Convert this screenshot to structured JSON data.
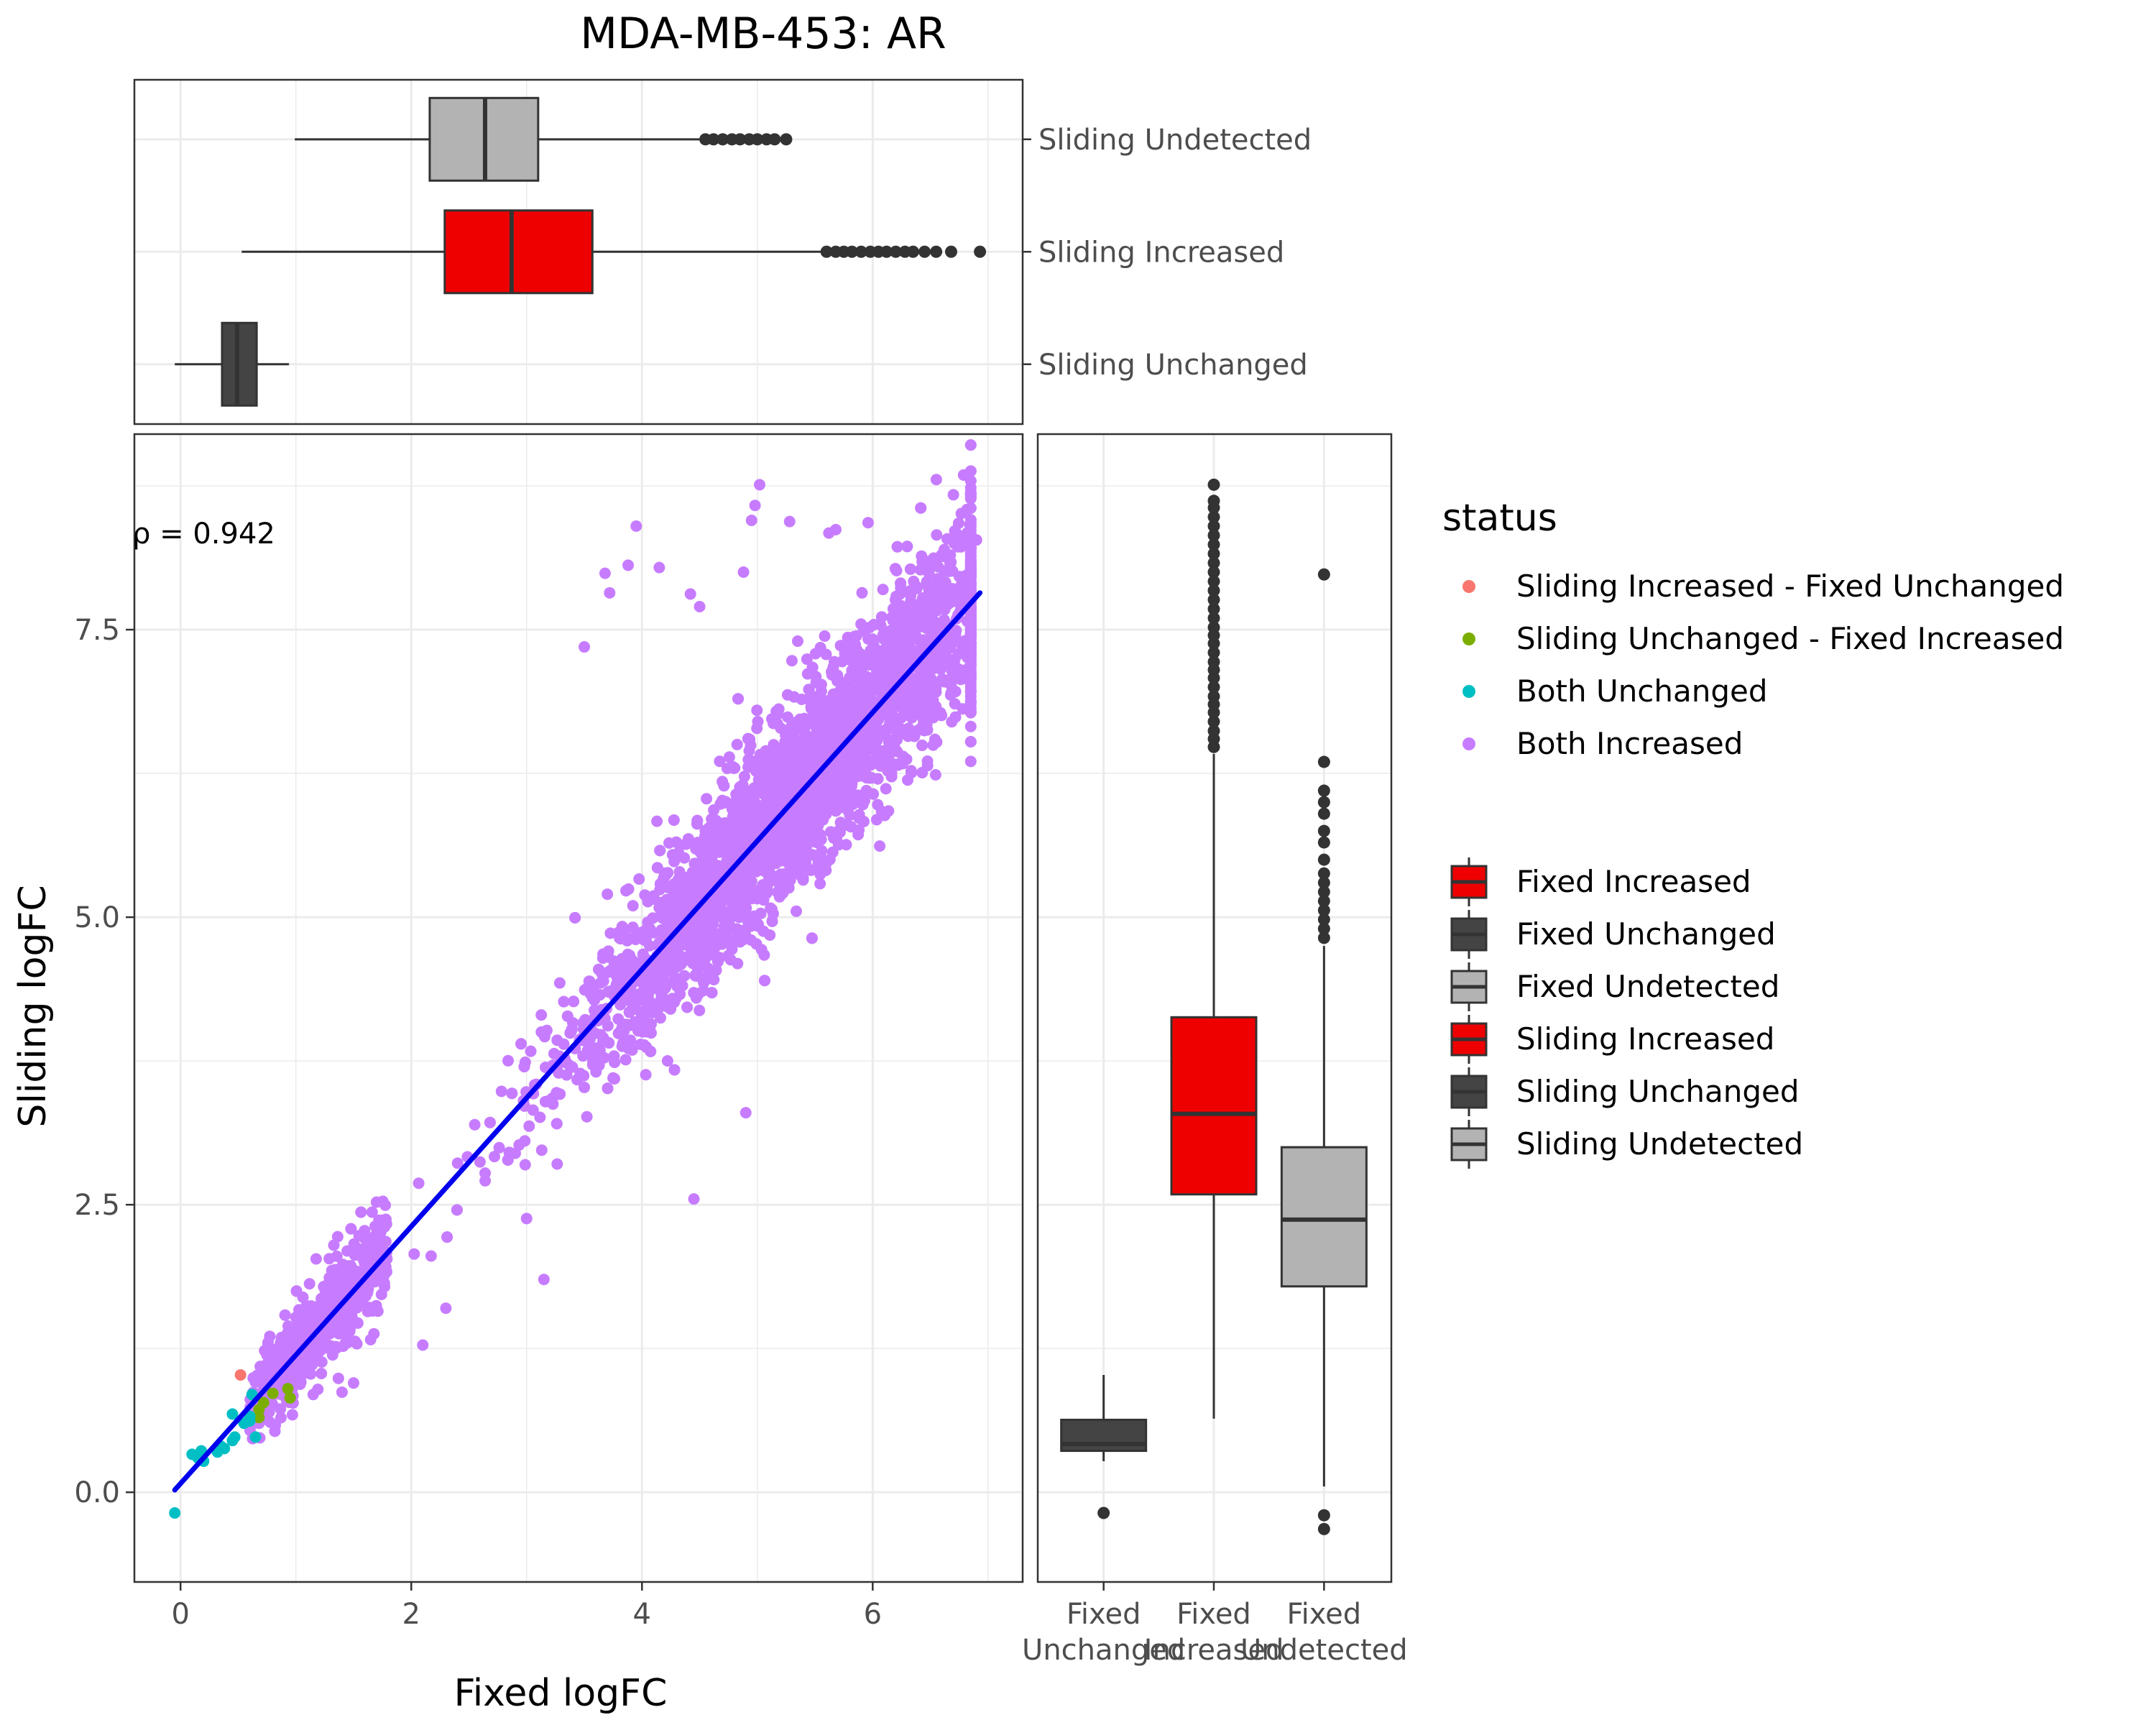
{
  "figure": {
    "title": "MDA-MB-453: AR",
    "colors": {
      "fixed_increased": "#EE0000",
      "fixed_unchanged": "#444444",
      "fixed_undetected": "#B3B3B3",
      "fit_line": "#0000EE",
      "box_line": "#333333",
      "grid": "#EBEBEB",
      "panel_border": "#333333",
      "axis_text": "#4D4D4D"
    }
  },
  "chart_data": [
    {
      "id": "top_boxplot",
      "type": "boxplot",
      "orientation": "horizontal",
      "xlim": [
        -0.4,
        7.3
      ],
      "categories": [
        "Sliding Unchanged",
        "Sliding Increased",
        "Sliding Undetected"
      ],
      "boxes": [
        {
          "name": "Sliding Unchanged",
          "whisker_low": -0.05,
          "q1": 0.36,
          "median": 0.49,
          "q3": 0.66,
          "whisker_high": 0.94,
          "outliers": [],
          "color": "#444444"
        },
        {
          "name": "Sliding Increased",
          "whisker_low": 0.53,
          "q1": 2.29,
          "median": 2.87,
          "q3": 3.57,
          "whisker_high": 5.55,
          "outliers": [
            5.6,
            5.68,
            5.75,
            5.82,
            5.9,
            5.98,
            6.05,
            6.12,
            6.2,
            6.28,
            6.35,
            6.45,
            6.55,
            6.68,
            6.93
          ],
          "color": "#EE0000"
        },
        {
          "name": "Sliding Undetected",
          "whisker_low": 0.99,
          "q1": 2.16,
          "median": 2.64,
          "q3": 3.1,
          "whisker_high": 4.5,
          "outliers": [
            4.55,
            4.62,
            4.7,
            4.78,
            4.85,
            4.93,
            5.0,
            5.08,
            5.15,
            5.25
          ],
          "color": "#B3B3B3"
        }
      ]
    },
    {
      "id": "scatter",
      "type": "scatter",
      "xlabel": "Fixed logFC",
      "ylabel": "Sliding logFC",
      "xlim": [
        -0.4,
        7.3
      ],
      "ylim": [
        -0.78,
        9.2
      ],
      "x_ticks": [
        0,
        2,
        4,
        6
      ],
      "x_tick_labels": [
        "0",
        "2",
        "4",
        "6"
      ],
      "y_ticks": [
        0,
        2.5,
        5,
        7.5
      ],
      "y_tick_labels": [
        "0.0",
        "2.5",
        "5.0",
        "7.5"
      ],
      "annotation": "ρ = 0.942",
      "fit_line": {
        "x": [
          -0.05,
          6.93
        ],
        "y": [
          0.02,
          7.82
        ]
      },
      "series": [
        {
          "name": "Sliding Increased - Fixed Unchanged",
          "color": "#F8766D",
          "points": [
            [
              0.52,
              1.02
            ]
          ]
        },
        {
          "name": "Sliding Unchanged - Fixed Increased",
          "color": "#7CAE00",
          "points": [
            [
              0.68,
              0.65
            ],
            [
              0.72,
              0.78
            ],
            [
              0.8,
              0.86
            ],
            [
              0.95,
              0.82
            ],
            [
              0.93,
              0.9
            ],
            [
              0.68,
              0.72
            ]
          ]
        },
        {
          "name": "Both Unchanged",
          "color": "#00BFC4",
          "points": [
            [
              -0.05,
              -0.18
            ],
            [
              0.1,
              0.33
            ],
            [
              0.15,
              0.3
            ],
            [
              0.18,
              0.36
            ],
            [
              0.2,
              0.27
            ],
            [
              0.32,
              0.35
            ],
            [
              0.35,
              0.4
            ],
            [
              0.45,
              0.45
            ],
            [
              0.47,
              0.48
            ],
            [
              0.45,
              0.68
            ],
            [
              0.55,
              0.6
            ],
            [
              0.6,
              0.66
            ],
            [
              0.62,
              0.85
            ],
            [
              0.65,
              0.48
            ],
            [
              0.38,
              0.38
            ],
            [
              0.6,
              0.62
            ]
          ]
        },
        {
          "name": "Both Increased",
          "color": "#C77CFF",
          "generated": true,
          "count": 4500,
          "noise_sd": 0.32,
          "x_range": [
            0.6,
            6.85
          ],
          "extreme_points": [
            [
              3.68,
              7.99
            ],
            [
              3.88,
              8.06
            ],
            [
              3.95,
              8.4
            ],
            [
              4.15,
              8.04
            ],
            [
              4.42,
              7.81
            ],
            [
              4.88,
              8.0
            ],
            [
              4.95,
              8.45
            ],
            [
              4.98,
              8.58
            ],
            [
              5.02,
              8.76
            ],
            [
              5.28,
              8.44
            ],
            [
              5.62,
              8.34
            ],
            [
              5.68,
              8.37
            ],
            [
              5.96,
              8.43
            ],
            [
              6.9,
              8.28
            ],
            [
              6.6,
              7.88
            ],
            [
              3.72,
              7.82
            ],
            [
              4.5,
              7.7
            ],
            [
              3.5,
              7.35
            ],
            [
              5.35,
              7.4
            ],
            [
              5.3,
              7.23
            ],
            [
              3.5,
              3.52
            ],
            [
              4.45,
              2.55
            ],
            [
              3.15,
              1.85
            ],
            [
              3.0,
              2.38
            ],
            [
              2.1,
              1.28
            ],
            [
              1.15,
              0.85
            ],
            [
              1.4,
              0.87
            ],
            [
              5.8,
              6.6
            ],
            [
              3.7,
              5.2
            ],
            [
              2.3,
              1.6
            ],
            [
              1.5,
              0.95
            ],
            [
              4.9,
              3.3
            ]
          ]
        }
      ]
    },
    {
      "id": "right_boxplot",
      "type": "boxplot",
      "orientation": "vertical",
      "ylim": [
        -0.78,
        9.2
      ],
      "categories": [
        "Fixed Unchanged",
        "Fixed Increased",
        "Fixed Undetected"
      ],
      "category_labels": [
        [
          "Fixed",
          "Unchanged"
        ],
        [
          "Fixed",
          "Increased"
        ],
        [
          "Fixed",
          "Undetected"
        ]
      ],
      "boxes": [
        {
          "name": "Fixed Unchanged",
          "whisker_low": 0.27,
          "q1": 0.36,
          "median": 0.42,
          "q3": 0.63,
          "whisker_high": 1.02,
          "outliers": [
            -0.18
          ],
          "color": "#444444"
        },
        {
          "name": "Fixed Increased",
          "whisker_low": 0.64,
          "q1": 2.59,
          "median": 3.29,
          "q3": 4.13,
          "whisker_high": 6.42,
          "outliers": [
            6.48,
            6.55,
            6.62,
            6.7,
            6.78,
            6.85,
            6.92,
            7.0,
            7.08,
            7.15,
            7.22,
            7.3,
            7.38,
            7.45,
            7.52,
            7.6,
            7.68,
            7.76,
            7.84,
            7.92,
            8.0,
            8.08,
            8.16,
            8.24,
            8.32,
            8.4,
            8.48,
            8.56,
            8.62,
            8.76
          ],
          "color": "#EE0000"
        },
        {
          "name": "Fixed Undetected",
          "whisker_low": 0.05,
          "q1": 1.79,
          "median": 2.37,
          "q3": 3.0,
          "whisker_high": 4.75,
          "outliers": [
            -0.2,
            -0.32,
            4.82,
            4.9,
            4.98,
            5.06,
            5.14,
            5.22,
            5.3,
            5.38,
            5.5,
            5.65,
            5.75,
            5.9,
            6.0,
            6.1,
            6.35,
            7.98
          ],
          "color": "#B3B3B3"
        }
      ]
    }
  ],
  "legend": {
    "status_title": "status",
    "status_items": [
      {
        "label": "Sliding Increased - Fixed Unchanged",
        "color": "#F8766D"
      },
      {
        "label": "Sliding Unchanged - Fixed Increased",
        "color": "#7CAE00"
      },
      {
        "label": "Both Unchanged",
        "color": "#00BFC4"
      },
      {
        "label": "Both Increased",
        "color": "#C77CFF"
      }
    ],
    "fill_items": [
      {
        "label": "Fixed Increased",
        "color": "#EE0000"
      },
      {
        "label": "Fixed Unchanged",
        "color": "#444444"
      },
      {
        "label": "Fixed Undetected",
        "color": "#B3B3B3"
      },
      {
        "label": "Sliding Increased",
        "color": "#EE0000"
      },
      {
        "label": "Sliding Unchanged",
        "color": "#444444"
      },
      {
        "label": "Sliding Undetected",
        "color": "#B3B3B3"
      }
    ]
  }
}
